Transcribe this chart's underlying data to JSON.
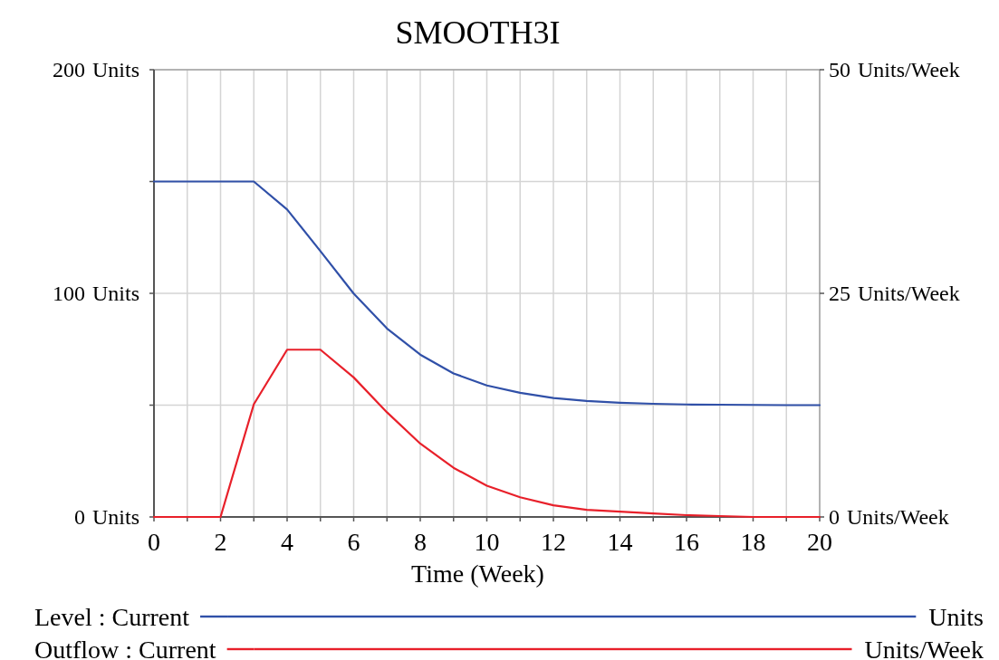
{
  "chart_data": {
    "type": "line",
    "title": "SMOOTH3I",
    "xlabel": "Time (Week)",
    "ylabel": "Units",
    "y2label": "Units/Week",
    "x": [
      0,
      1,
      2,
      3,
      4,
      5,
      6,
      7,
      8,
      9,
      10,
      11,
      12,
      13,
      14,
      15,
      16,
      17,
      18,
      19,
      20
    ],
    "series": [
      {
        "name": "Level : Current",
        "color": "#3050a8",
        "values": [
          150,
          150,
          150,
          150,
          137.5,
          118.9,
          99.9,
          84.3,
          72.6,
          64.2,
          58.8,
          55.5,
          53.2,
          51.9,
          51.1,
          50.6,
          50.3,
          50.2,
          50.1,
          50,
          50
        ]
      },
      {
        "name": "Outflow : Current",
        "color": "#e8202a",
        "axis": "y2",
        "values": [
          0,
          0,
          0,
          12.6,
          18.7,
          18.7,
          15.6,
          11.7,
          8.2,
          5.5,
          3.5,
          2.2,
          1.3,
          0.8,
          0.6,
          0.4,
          0.2,
          0.1,
          0,
          0,
          0
        ]
      }
    ],
    "xlim": [
      0,
      20
    ],
    "xticks": [
      0,
      {
        "value": 1,
        "label": null
      },
      2,
      {
        "value": 3,
        "label": null
      },
      4,
      {
        "value": 5,
        "label": null
      },
      6,
      {
        "value": 7,
        "label": null
      },
      8,
      {
        "value": 9,
        "label": null
      },
      10,
      {
        "value": 11,
        "label": null
      },
      12,
      {
        "value": 13,
        "label": null
      },
      14,
      {
        "value": 15,
        "label": null
      },
      16,
      {
        "value": 17,
        "label": null
      },
      18,
      {
        "value": 19,
        "label": null
      },
      20
    ],
    "ylim": [
      0,
      200
    ],
    "yticks": [
      0,
      {
        "value": 50,
        "label": null
      },
      100,
      {
        "value": 150,
        "label": null
      },
      200
    ],
    "y2lim": [
      0,
      50
    ],
    "y2ticks": [
      0,
      25,
      50
    ],
    "grid": true,
    "legend": "bottom",
    "marker": "none",
    "line_style": "solid"
  }
}
